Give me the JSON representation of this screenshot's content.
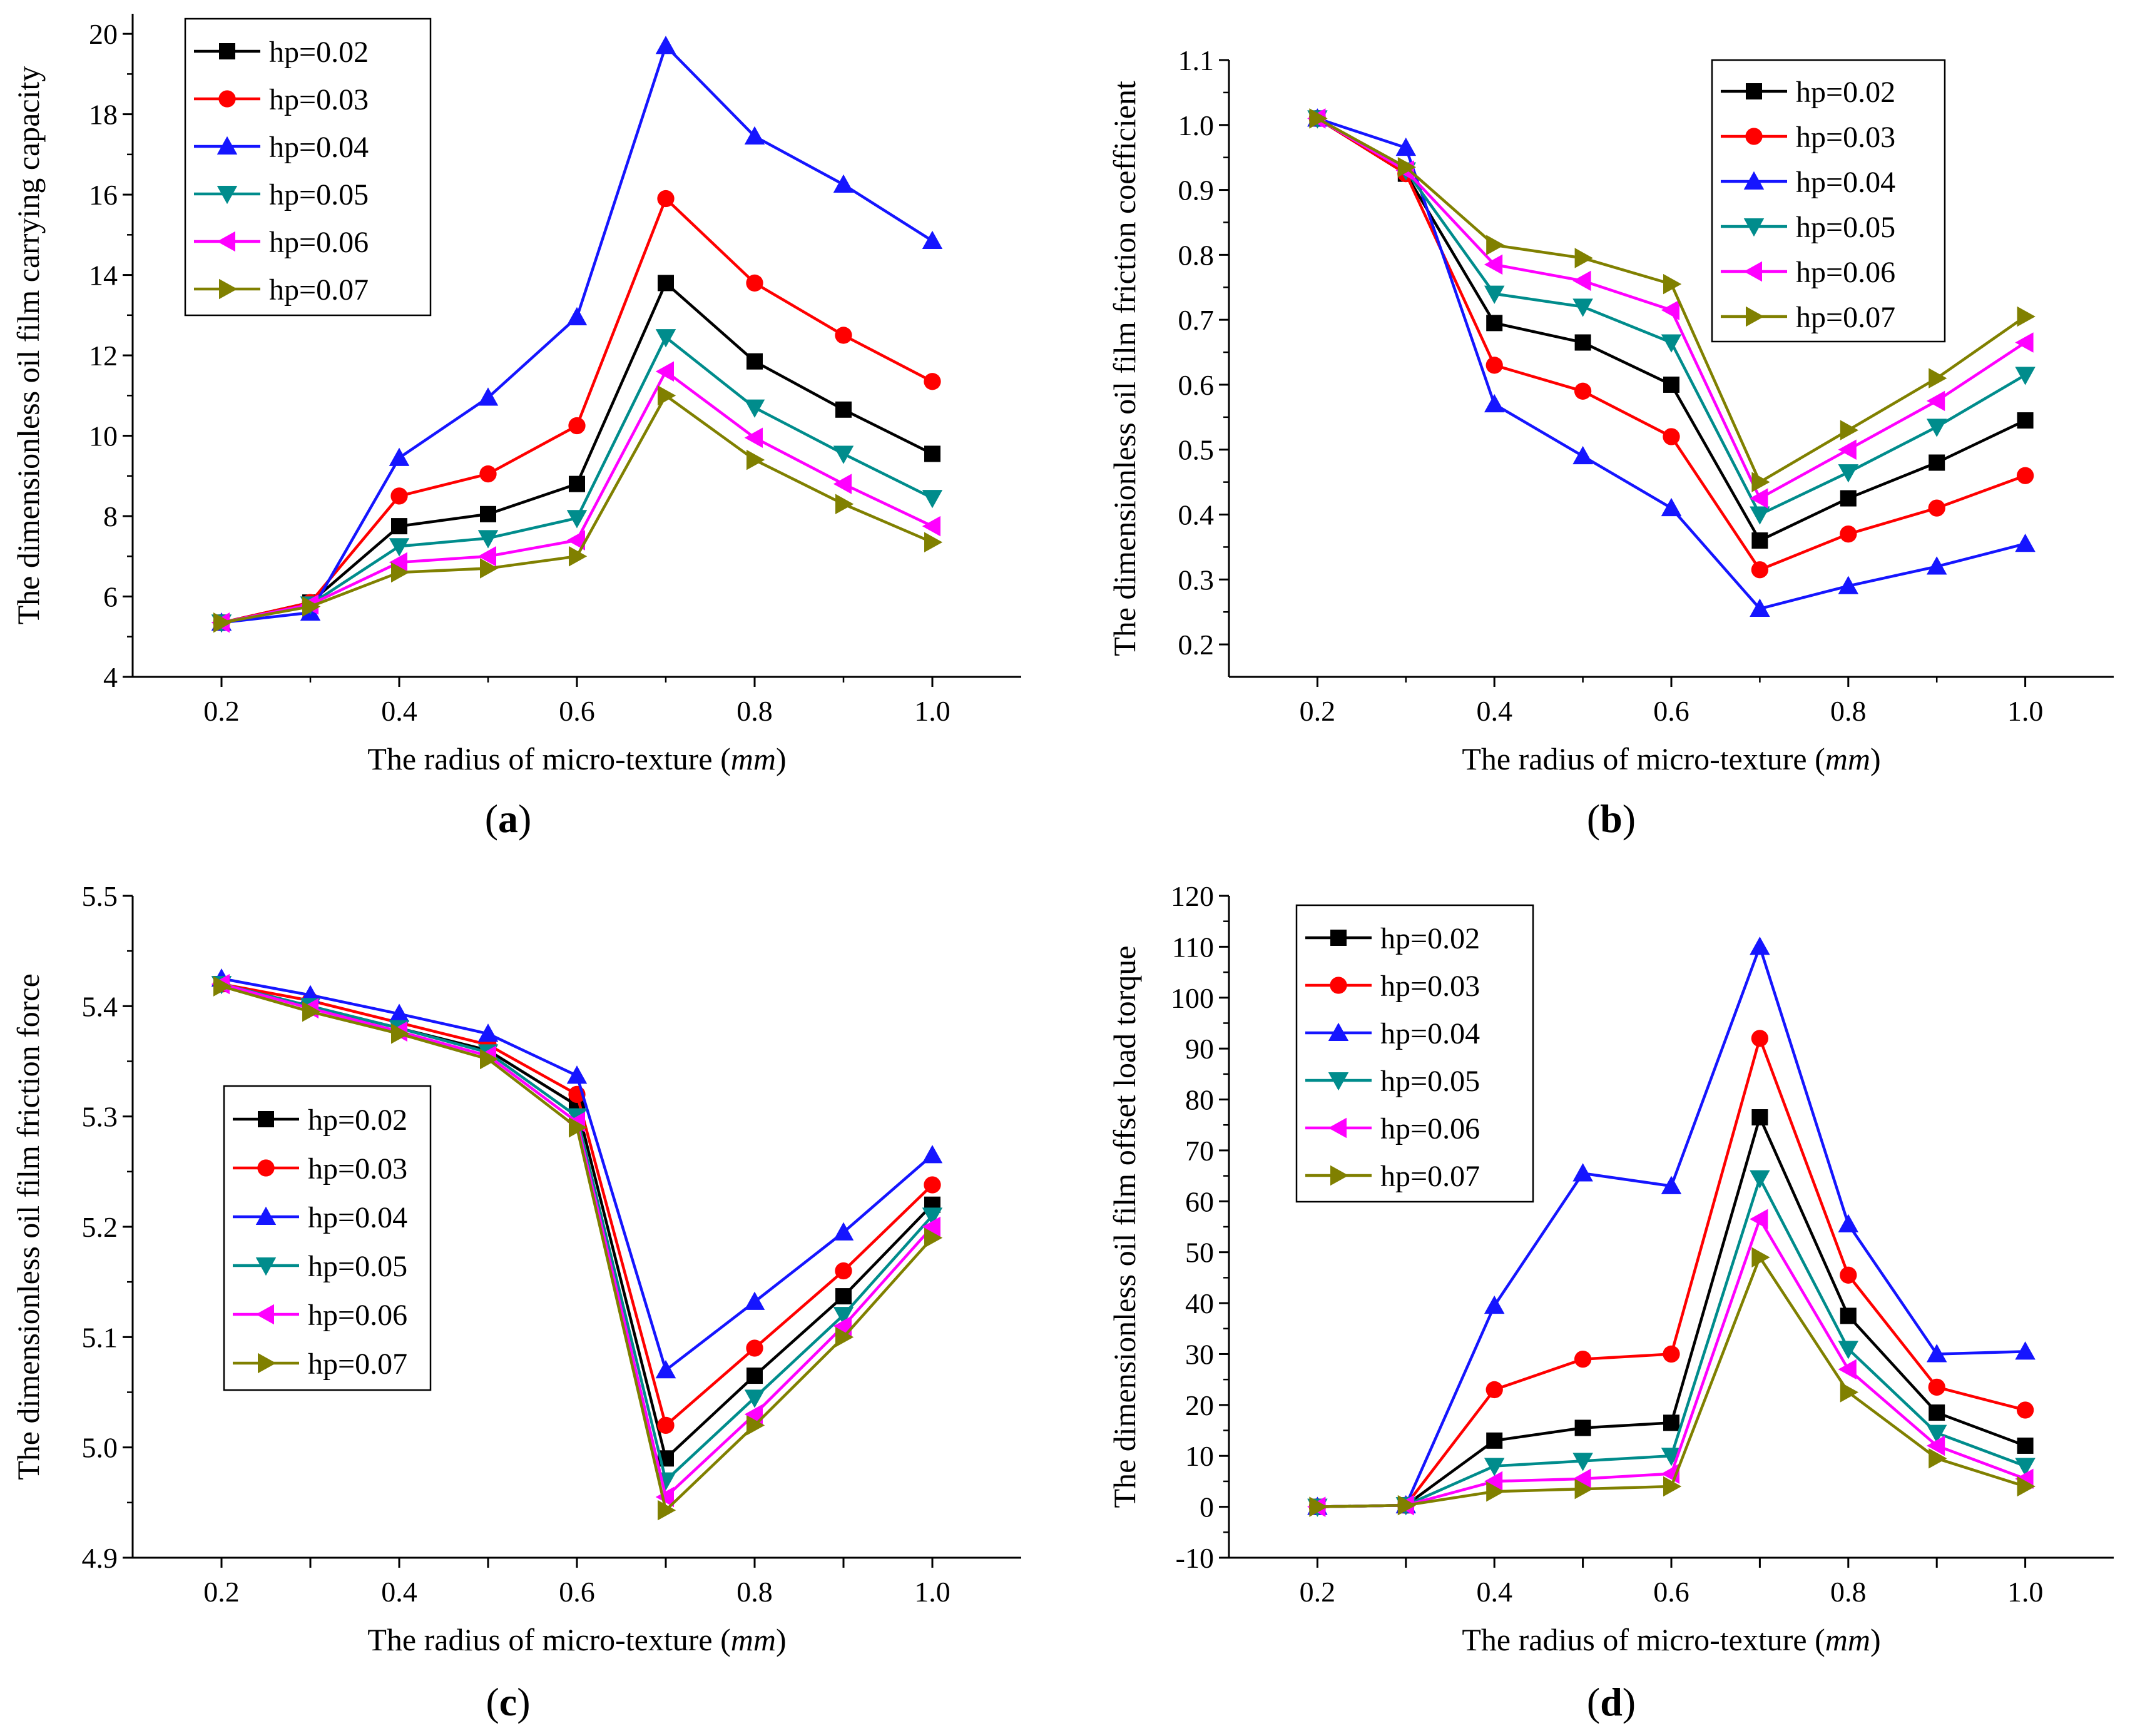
{
  "figure": {
    "legend_labels": [
      "hp=0.02",
      "hp=0.03",
      "hp=0.04",
      "hp=0.05",
      "hp=0.06",
      "hp=0.07"
    ],
    "series_colors": [
      "#000000",
      "#ff0000",
      "#1515ff",
      "#008c8c",
      "#ff00ff",
      "#808000"
    ],
    "marker_shapes": [
      "square",
      "circle",
      "triangle-up",
      "triangle-down",
      "triangle-left",
      "triangle-right"
    ],
    "xlabel_main": "The radius of micro-texture (",
    "xlabel_unit": "mm",
    "xlabel_close": ")"
  },
  "chart_data": [
    {
      "type": "line",
      "panel": "a",
      "panel_label": "a",
      "ylabel": "The dimensionless oil film carrying capacity",
      "x": [
        0.2,
        0.3,
        0.4,
        0.5,
        0.6,
        0.7,
        0.8,
        0.9,
        1.0
      ],
      "xlim": [
        0.1,
        1.1
      ],
      "xticks": [
        0.2,
        0.4,
        0.6,
        0.8,
        1.0
      ],
      "xtick_labels": [
        "0.2",
        "0.4",
        "0.6",
        "0.8",
        "1.0"
      ],
      "ylim": [
        4,
        20.5
      ],
      "yticks": [
        4,
        6,
        8,
        10,
        12,
        14,
        16,
        18,
        20
      ],
      "ytick_labels": [
        "4",
        "6",
        "8",
        "10",
        "12",
        "14",
        "16",
        "18",
        "20"
      ],
      "legend_position": "top-left",
      "series": [
        {
          "name": "hp=0.02",
          "values": [
            5.35,
            5.85,
            7.75,
            8.05,
            8.8,
            13.8,
            11.85,
            10.65,
            9.55
          ]
        },
        {
          "name": "hp=0.03",
          "values": [
            5.35,
            5.85,
            8.5,
            9.05,
            10.25,
            15.9,
            13.8,
            12.5,
            11.35
          ]
        },
        {
          "name": "hp=0.04",
          "values": [
            5.35,
            5.6,
            9.45,
            10.95,
            12.95,
            19.7,
            17.45,
            16.25,
            14.85
          ]
        },
        {
          "name": "hp=0.05",
          "values": [
            5.35,
            5.8,
            7.25,
            7.45,
            7.95,
            12.45,
            10.7,
            9.55,
            8.45
          ]
        },
        {
          "name": "hp=0.06",
          "values": [
            5.35,
            5.8,
            6.85,
            7.0,
            7.4,
            11.6,
            9.95,
            8.8,
            7.75
          ]
        },
        {
          "name": "hp=0.07",
          "values": [
            5.35,
            5.75,
            6.6,
            6.7,
            7.0,
            11.0,
            9.4,
            8.3,
            7.35
          ]
        }
      ]
    },
    {
      "type": "line",
      "panel": "b",
      "panel_label": "b",
      "ylabel": "The dimensionless oil film friction coefficient",
      "x": [
        0.2,
        0.3,
        0.4,
        0.5,
        0.6,
        0.7,
        0.8,
        0.9,
        1.0
      ],
      "xlim": [
        0.1,
        1.1
      ],
      "xticks": [
        0.2,
        0.4,
        0.6,
        0.8,
        1.0
      ],
      "xtick_labels": [
        "0.2",
        "0.4",
        "0.6",
        "0.8",
        "1.0"
      ],
      "ylim": [
        0.15,
        1.1
      ],
      "yticks": [
        0.2,
        0.3,
        0.4,
        0.5,
        0.6,
        0.7,
        0.8,
        0.9,
        1.0,
        1.1
      ],
      "ytick_labels": [
        "0.2",
        "0.3",
        "0.4",
        "0.5",
        "0.6",
        "0.7",
        "0.8",
        "0.9",
        "1.0",
        "1.1"
      ],
      "legend_position": "top-right",
      "series": [
        {
          "name": "hp=0.02",
          "values": [
            1.01,
            0.925,
            0.695,
            0.665,
            0.6,
            0.36,
            0.425,
            0.48,
            0.545
          ]
        },
        {
          "name": "hp=0.03",
          "values": [
            1.01,
            0.925,
            0.63,
            0.59,
            0.52,
            0.315,
            0.37,
            0.41,
            0.46
          ]
        },
        {
          "name": "hp=0.04",
          "values": [
            1.01,
            0.965,
            0.57,
            0.49,
            0.41,
            0.255,
            0.29,
            0.32,
            0.355
          ]
        },
        {
          "name": "hp=0.05",
          "values": [
            1.01,
            0.93,
            0.74,
            0.72,
            0.665,
            0.4,
            0.465,
            0.535,
            0.615
          ]
        },
        {
          "name": "hp=0.06",
          "values": [
            1.01,
            0.93,
            0.785,
            0.76,
            0.715,
            0.425,
            0.5,
            0.575,
            0.665
          ]
        },
        {
          "name": "hp=0.07",
          "values": [
            1.01,
            0.935,
            0.815,
            0.795,
            0.755,
            0.45,
            0.53,
            0.61,
            0.705
          ]
        }
      ]
    },
    {
      "type": "line",
      "panel": "c",
      "panel_label": "c",
      "ylabel": "The dimensionless oil film friction force",
      "x": [
        0.2,
        0.3,
        0.4,
        0.5,
        0.6,
        0.7,
        0.8,
        0.9,
        1.0
      ],
      "xlim": [
        0.1,
        1.1
      ],
      "xticks": [
        0.2,
        0.3,
        0.4,
        0.5,
        0.6,
        0.7,
        0.8,
        0.9,
        1.0
      ],
      "xtick_labels": [
        "0.2",
        "",
        "0.4",
        "",
        "0.6",
        "",
        "0.8",
        "",
        "1.0"
      ],
      "ylim": [
        4.9,
        5.5
      ],
      "yticks": [
        4.9,
        5.0,
        5.1,
        5.2,
        5.3,
        5.4,
        5.5
      ],
      "ytick_labels": [
        "4.9",
        "5.0",
        "5.1",
        "5.2",
        "5.3",
        "5.4",
        "5.5"
      ],
      "legend_position": "center-left",
      "series": [
        {
          "name": "hp=0.02",
          "values": [
            5.42,
            5.4,
            5.38,
            5.36,
            5.31,
            4.99,
            5.065,
            5.137,
            5.22
          ]
        },
        {
          "name": "hp=0.03",
          "values": [
            5.42,
            5.405,
            5.385,
            5.365,
            5.32,
            5.02,
            5.09,
            5.16,
            5.238
          ]
        },
        {
          "name": "hp=0.04",
          "values": [
            5.425,
            5.41,
            5.393,
            5.375,
            5.337,
            5.07,
            5.132,
            5.195,
            5.265
          ]
        },
        {
          "name": "hp=0.05",
          "values": [
            5.42,
            5.4,
            5.38,
            5.358,
            5.3,
            4.97,
            5.045,
            5.12,
            5.21
          ]
        },
        {
          "name": "hp=0.06",
          "values": [
            5.42,
            5.398,
            5.377,
            5.355,
            5.295,
            4.955,
            5.03,
            5.11,
            5.2
          ]
        },
        {
          "name": "hp=0.07",
          "values": [
            5.418,
            5.395,
            5.375,
            5.352,
            5.29,
            4.943,
            5.02,
            5.1,
            5.19
          ]
        }
      ]
    },
    {
      "type": "line",
      "panel": "d",
      "panel_label": "d",
      "ylabel": "The dimensionless oil film offset load torque",
      "x": [
        0.2,
        0.3,
        0.4,
        0.5,
        0.6,
        0.7,
        0.8,
        0.9,
        1.0
      ],
      "xlim": [
        0.1,
        1.1
      ],
      "xticks": [
        0.2,
        0.3,
        0.4,
        0.5,
        0.6,
        0.7,
        0.8,
        0.9,
        1.0
      ],
      "xtick_labels": [
        "0.2",
        "",
        "0.4",
        "",
        "0.6",
        "",
        "0.8",
        "",
        "1.0"
      ],
      "ylim": [
        -10,
        120
      ],
      "yticks": [
        -10,
        0,
        10,
        20,
        30,
        40,
        50,
        60,
        70,
        80,
        90,
        100,
        110,
        120
      ],
      "ytick_labels": [
        "-10",
        "0",
        "10",
        "20",
        "30",
        "40",
        "50",
        "60",
        "70",
        "80",
        "90",
        "100",
        "110",
        "120"
      ],
      "legend_position": "top-left",
      "series": [
        {
          "name": "hp=0.02",
          "values": [
            0,
            0.3,
            13,
            15.5,
            16.5,
            76.5,
            37.5,
            18.5,
            12
          ]
        },
        {
          "name": "hp=0.03",
          "values": [
            0,
            0.3,
            23,
            29,
            30,
            92,
            45.5,
            23.5,
            19
          ]
        },
        {
          "name": "hp=0.04",
          "values": [
            0,
            0.3,
            39.5,
            65.5,
            63,
            110,
            55.5,
            30,
            30.5
          ]
        },
        {
          "name": "hp=0.05",
          "values": [
            0,
            0.3,
            8,
            9,
            10,
            64.5,
            31,
            14.5,
            8
          ]
        },
        {
          "name": "hp=0.06",
          "values": [
            0,
            0.3,
            5,
            5.5,
            6.5,
            56.5,
            27,
            12,
            5.5
          ]
        },
        {
          "name": "hp=0.07",
          "values": [
            0,
            0.3,
            3,
            3.5,
            4,
            49,
            22.5,
            9.5,
            4
          ]
        }
      ]
    }
  ]
}
